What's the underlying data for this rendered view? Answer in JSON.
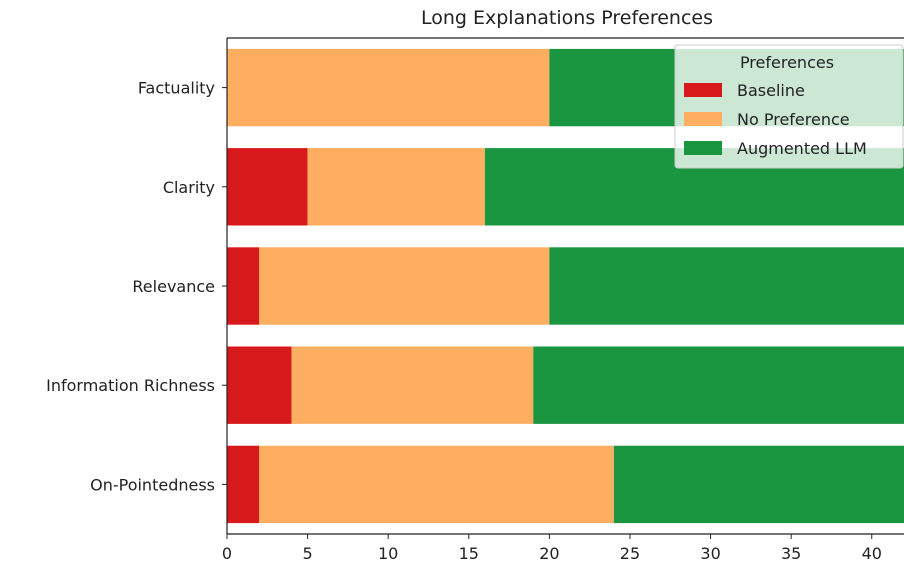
{
  "chart_data": {
    "type": "bar",
    "orientation": "horizontal",
    "stacked": true,
    "title": "Long Explanations Preferences",
    "xlabel": "",
    "ylabel": "",
    "categories": [
      "Factuality",
      "Clarity",
      "Relevance",
      "Information Richness",
      "On-Pointedness"
    ],
    "series": [
      {
        "name": "Baseline",
        "color": "#d7191c",
        "values": [
          0,
          5,
          2,
          4,
          2
        ]
      },
      {
        "name": "No Preference",
        "color": "#fdae61",
        "values": [
          20,
          11,
          18,
          15,
          22
        ]
      },
      {
        "name": "Augmented LLM",
        "color": "#1a9641",
        "values": [
          22,
          26,
          22,
          23,
          18
        ]
      }
    ],
    "xlim": [
      0,
      42
    ],
    "xticks": [
      0,
      5,
      10,
      15,
      20,
      25,
      30,
      35,
      40
    ],
    "grid": false,
    "legend": {
      "title": "Preferences",
      "placement": "top-right"
    }
  }
}
